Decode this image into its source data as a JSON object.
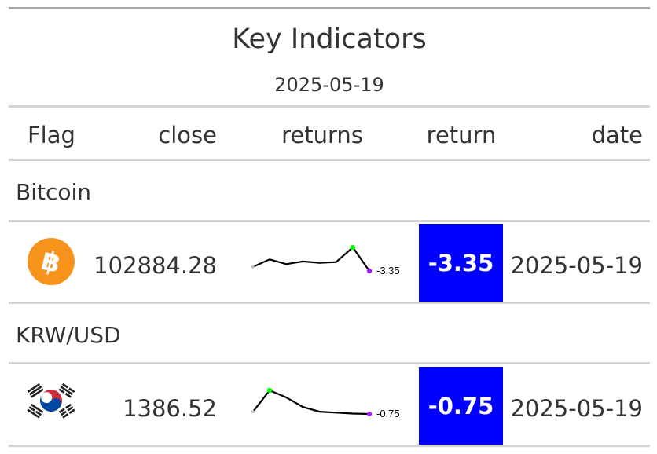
{
  "title": "Key Indicators",
  "subtitle": "2025-05-19",
  "columns": [
    "Flag",
    "close",
    "returns",
    "return",
    "date"
  ],
  "groups": [
    {
      "label": "Bitcoin",
      "flag_icon": "bitcoin-icon",
      "close": "102884.28",
      "sparkline": [
        103.5,
        104.6,
        103.9,
        104.3,
        104.1,
        104.2,
        106.4,
        102.88
      ],
      "spark_label": "-3.35",
      "return": "-3.35",
      "return_color": "#0000ff",
      "date": "2025-05-19"
    },
    {
      "label": "KRW/USD",
      "flag_icon": "south-korea-flag-icon",
      "close": "1386.52",
      "sparkline": [
        1387.0,
        1391.5,
        1390.0,
        1388.0,
        1387.0,
        1386.8,
        1386.6,
        1386.52
      ],
      "spark_label": "-0.75",
      "return": "-0.75",
      "return_color": "#0000ff",
      "date": "2025-05-19"
    }
  ],
  "colors": {
    "sparkline": "#000000",
    "spark_max_point": "#00ff00",
    "spark_last_point": "#a020f0",
    "spark_start_point": "#bebebe",
    "rules": "#d3d3d3",
    "top_rule": "#a8a8a8"
  }
}
